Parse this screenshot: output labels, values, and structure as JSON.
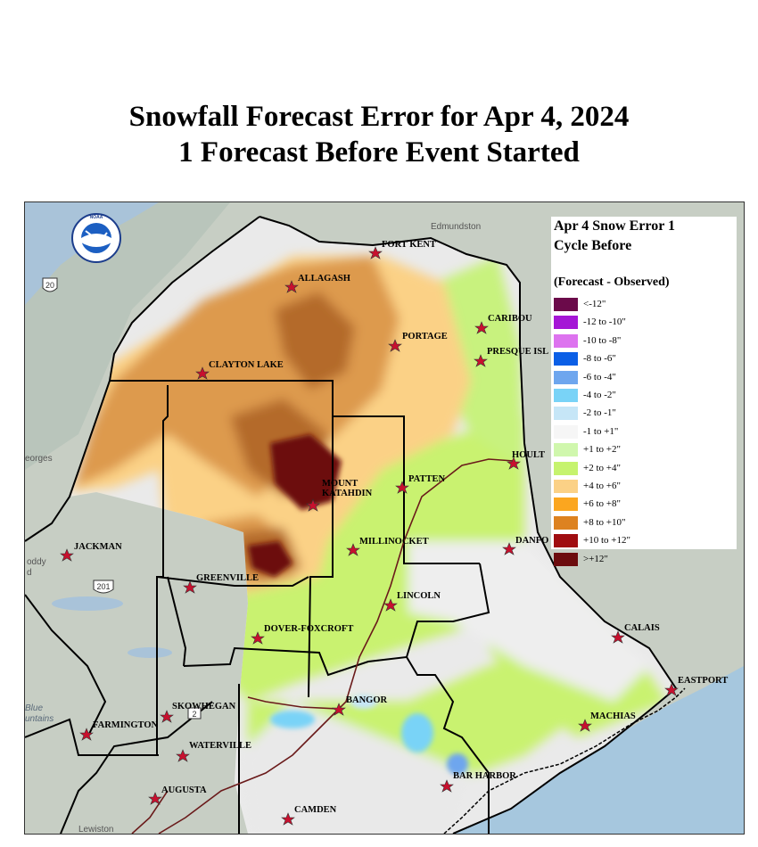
{
  "title": {
    "line1": "Snowfall Forecast Error for Apr 4, 2024",
    "line2": "1 Forecast Before Event Started"
  },
  "legend": {
    "title_line1": "Apr 4 Snow Error 1",
    "title_line2": "Cycle Before",
    "subtitle": "(Forecast - Observed)",
    "entries": [
      {
        "label": "<-12\"",
        "color": "#6b0a4a"
      },
      {
        "label": "-12 to -10\"",
        "color": "#a516d6"
      },
      {
        "label": "-10 to -8\"",
        "color": "#dd73ef"
      },
      {
        "label": "-8 to -6\"",
        "color": "#0b5fe6"
      },
      {
        "label": "-6 to -4\"",
        "color": "#6ea6ee"
      },
      {
        "label": "-4 to -2\"",
        "color": "#79d3f7"
      },
      {
        "label": "-2 to -1\"",
        "color": "#c6e6f7"
      },
      {
        "label": "-1 to +1\"",
        "color": "#f6f6f6"
      },
      {
        "label": "+1 to +2\"",
        "color": "#d0f7ad"
      },
      {
        "label": "+2 to +4\"",
        "color": "#c6f36e"
      },
      {
        "label": "+4 to +6\"",
        "color": "#fbd186"
      },
      {
        "label": "+6 to +8\"",
        "color": "#fba61f"
      },
      {
        "label": "+8 to +10\"",
        "color": "#dd8220"
      },
      {
        "label": "+10 to +12\"",
        "color": "#a00d10"
      },
      {
        "label": ">+12\"",
        "color": "#6c0c0e"
      }
    ]
  },
  "cities": {
    "fort_kent": "FORT KENT",
    "allagash": "ALLAGASH",
    "caribou": "CARIBOU",
    "portage": "PORTAGE",
    "presque_isle": "PRESQUE ISL",
    "clayton_lake": "CLAYTON LAKE",
    "houlton": "HOULT",
    "mount_katahdin_1": "MOUNT",
    "mount_katahdin_2": "KATAHDIN",
    "patten": "PATTEN",
    "millinocket": "MILLINOCKET",
    "danforth": "DANFO",
    "jackman": "JACKMAN",
    "greenville": "GREENVILLE",
    "lincoln": "LINCOLN",
    "dover_foxcroft": "DOVER-FOXCROFT",
    "calais": "CALAIS",
    "eastport": "EASTPORT",
    "bangor": "BANGOR",
    "machias": "MACHIAS",
    "skowhegan": "SKOWHEGAN",
    "farmington": "FARMINGTON",
    "waterville": "WATERVILLE",
    "augusta": "AUGUSTA",
    "bar_harbor": "BAR HARBOR",
    "camden": "CAMDEN"
  },
  "basemap_labels": {
    "edmundston": "Edmundston",
    "georges": "eorges",
    "route_20": "20",
    "route_201": "201",
    "route_2": "2",
    "blue_mountains_1": "Blue",
    "blue_mountains_2": "untains",
    "lewiston": "Lewiston",
    "coddy": "oddy",
    "coddy2": "d"
  },
  "logo": {
    "text": "NOAA"
  }
}
